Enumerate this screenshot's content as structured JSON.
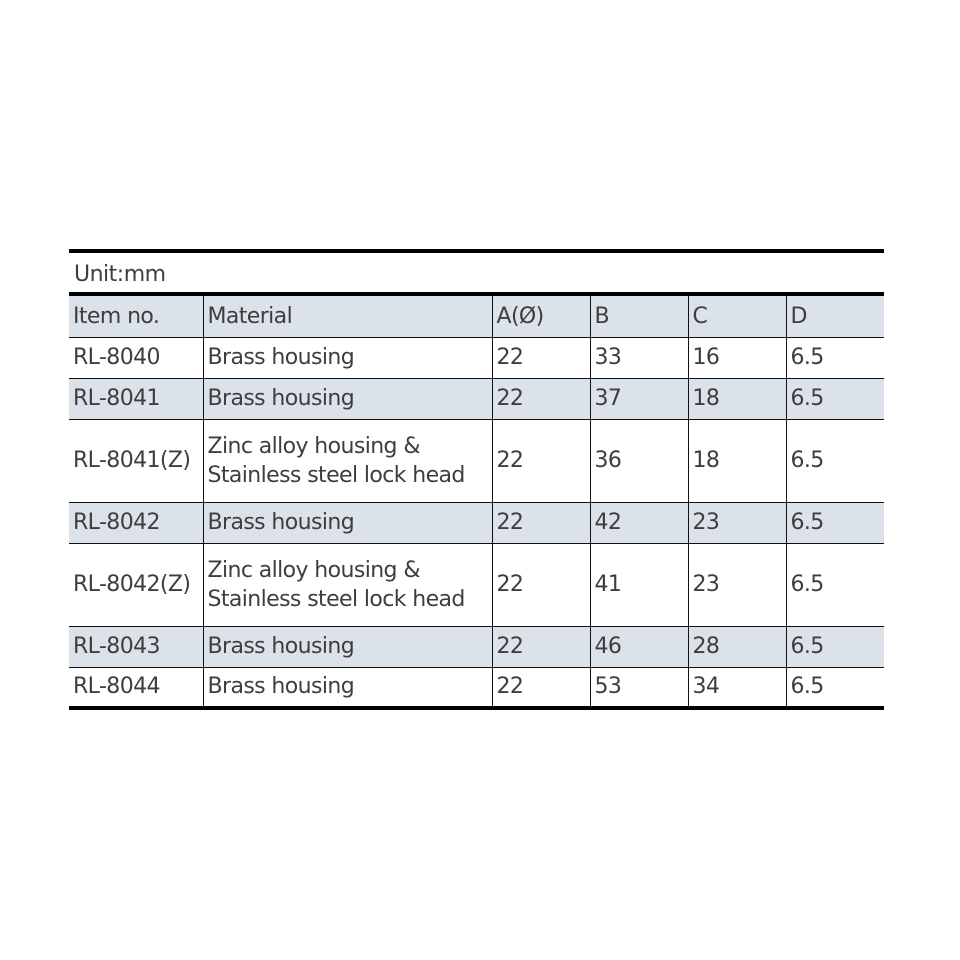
{
  "unit_label": "Unit:mm",
  "headers": [
    "Item no.",
    "Material",
    "A(Ø)",
    "B",
    "C",
    "D"
  ],
  "rows": [
    {
      "item": "RL-8040",
      "material": [
        "Brass housing"
      ],
      "a": "22",
      "b": "33",
      "c": "16",
      "d": "6.5"
    },
    {
      "item": "RL-8041",
      "material": [
        "Brass housing"
      ],
      "a": "22",
      "b": "37",
      "c": "18",
      "d": "6.5"
    },
    {
      "item": "RL-8041(Z)",
      "material": [
        "Zinc alloy housing &",
        "Stainless steel lock head"
      ],
      "a": "22",
      "b": "36",
      "c": "18",
      "d": "6.5"
    },
    {
      "item": "RL-8042",
      "material": [
        "Brass housing"
      ],
      "a": "22",
      "b": "42",
      "c": "23",
      "d": "6.5"
    },
    {
      "item": "RL-8042(Z)",
      "material": [
        "Zinc alloy housing &",
        "Stainless steel lock head"
      ],
      "a": "22",
      "b": "41",
      "c": "23",
      "d": "6.5"
    },
    {
      "item": "RL-8043",
      "material": [
        "Brass housing"
      ],
      "a": "22",
      "b": "46",
      "c": "28",
      "d": "6.5"
    },
    {
      "item": "RL-8044",
      "material": [
        "Brass housing"
      ],
      "a": "22",
      "b": "53",
      "c": "34",
      "d": "6.5"
    }
  ],
  "colors": {
    "shade": "#dce2e9",
    "text": "#3e3e3e",
    "rule": "#000000"
  }
}
